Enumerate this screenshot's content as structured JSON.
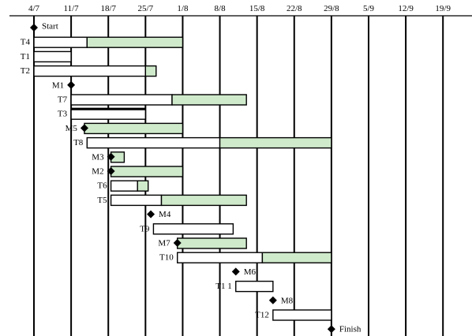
{
  "chart_data": {
    "type": "gantt",
    "title": "",
    "xlabel": "",
    "ylabel": "",
    "dates": [
      "4/7",
      "11/7",
      "18/7",
      "25/7",
      "1/8",
      "8/8",
      "15/8",
      "22/8",
      "29/8",
      "5/9",
      "12/9",
      "19/9"
    ],
    "colors": {
      "slack": "#cfeacb",
      "bar_outline": "#000000",
      "grid": "#000000"
    },
    "rows": [
      {
        "label": "Start",
        "kind": "milestone",
        "day": 0,
        "label_side": "right"
      },
      {
        "label": "T4",
        "kind": "task",
        "start": 0,
        "end": 10,
        "slack_end": 28
      },
      {
        "label": "T1",
        "kind": "task",
        "start": 0,
        "end": 7,
        "slack_end": 7
      },
      {
        "label": "T2",
        "kind": "task",
        "start": 0,
        "end": 21,
        "slack_end": 23
      },
      {
        "label": "M1",
        "kind": "milestone",
        "day": 7,
        "label_side": "left"
      },
      {
        "label": "T7",
        "kind": "task",
        "start": 7,
        "end": 26,
        "slack_end": 40
      },
      {
        "label": "T3",
        "kind": "task",
        "start": 7,
        "end": 21,
        "slack_end": 21,
        "thick_top": true
      },
      {
        "label": "M5",
        "kind": "milestone",
        "day": 9.5,
        "label_side": "left",
        "slack_end": 28
      },
      {
        "label": "T8",
        "kind": "task",
        "start": 10,
        "end": 35,
        "slack_end": 56
      },
      {
        "label": "M3",
        "kind": "milestone",
        "day": 14.5,
        "label_side": "left",
        "slack_end": 17
      },
      {
        "label": "M2",
        "kind": "milestone",
        "day": 14.5,
        "label_side": "left",
        "slack_end": 28
      },
      {
        "label": "T6",
        "kind": "task",
        "start": 14.5,
        "end": 19.5,
        "slack_end": 21.5
      },
      {
        "label": "T5",
        "kind": "task",
        "start": 14.5,
        "end": 24,
        "slack_end": 40
      },
      {
        "label": "M4",
        "kind": "milestone",
        "day": 22,
        "label_side": "right"
      },
      {
        "label": "T9",
        "kind": "task",
        "start": 22.5,
        "end": 37.5,
        "slack_end": 37.5
      },
      {
        "label": "M7",
        "kind": "milestone",
        "day": 27,
        "label_side": "left",
        "slack_end": 40
      },
      {
        "label": "T10",
        "kind": "task",
        "start": 27,
        "end": 43,
        "slack_end": 56
      },
      {
        "label": "M6",
        "kind": "milestone",
        "day": 38,
        "label_side": "right"
      },
      {
        "label": "T1 1",
        "kind": "task",
        "start": 38,
        "end": 45,
        "slack_end": 45
      },
      {
        "label": "M8",
        "kind": "milestone",
        "day": 45,
        "label_side": "right"
      },
      {
        "label": "T12",
        "kind": "task",
        "start": 45,
        "end": 56,
        "slack_end": 56
      },
      {
        "label": "Finish",
        "kind": "milestone",
        "day": 56,
        "label_side": "right"
      }
    ]
  }
}
